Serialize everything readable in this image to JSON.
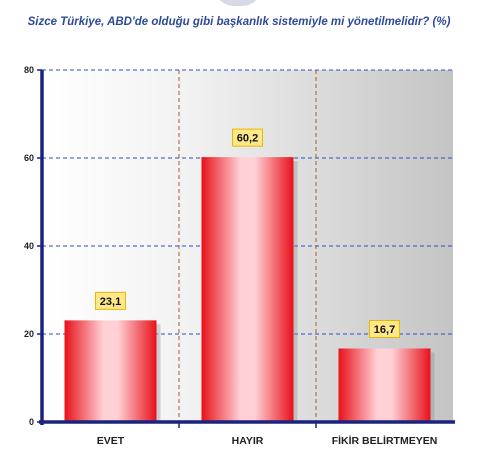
{
  "title": "Sizce Türkiye, ABD'de olduğu gibi başkanlık sistemiyle mi yönetilmelidir? (%)",
  "chart_data": {
    "type": "bar",
    "title": "Sizce Türkiye, ABD'de olduğu gibi başkanlık sistemiyle mi yönetilmelidir? (%)",
    "categories": [
      "EVET",
      "HAYIR",
      "FİKİR BELİRTMEYEN"
    ],
    "values": [
      23.1,
      60.2,
      16.7
    ],
    "value_labels": [
      "23,1",
      "60,2",
      "16,7"
    ],
    "ylim": [
      0,
      80
    ],
    "yticks": [
      0,
      20,
      40,
      60,
      80
    ],
    "grid": true,
    "xlabel": "",
    "ylabel": "",
    "colors": {
      "bar_edge": "#e8101a",
      "bar_center": "#ffd0d4",
      "axis": "#1a237e",
      "hgrid": "#2b4fc0",
      "vgrid": "#a85a2a",
      "label_box": "#ffe88a",
      "label_box_edge": "#e9b800"
    }
  }
}
